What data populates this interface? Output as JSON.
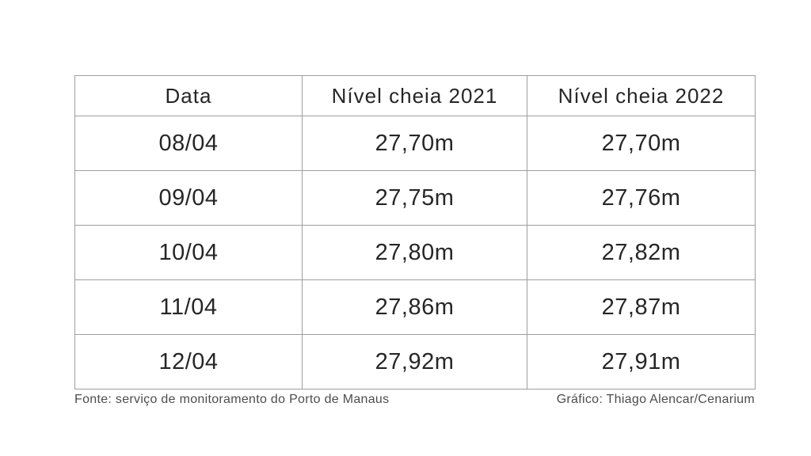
{
  "table": {
    "header": [
      "Data",
      "Nível cheia 2021",
      "Nível cheia 2022"
    ],
    "rows": [
      [
        "08/04",
        "27,70m",
        "27,70m"
      ],
      [
        "09/04",
        "27,75m",
        "27,76m"
      ],
      [
        "10/04",
        "27,80m",
        "27,82m"
      ],
      [
        "11/04",
        "27,86m",
        "27,87m"
      ],
      [
        "12/04",
        "27,92m",
        "27,91m"
      ]
    ],
    "border_color": "#9e9e9e",
    "text_color": "#262626"
  },
  "footer": {
    "source": "Fonte: serviço de monitoramento do Porto de Manaus",
    "credit": "Gráfico: Thiago Alencar/Cenarium",
    "color": "#4d4d4d"
  },
  "chart_data": {
    "type": "table",
    "title": "",
    "columns": [
      "Data",
      "Nível cheia 2021",
      "Nível cheia 2022"
    ],
    "categories": [
      "08/04",
      "09/04",
      "10/04",
      "11/04",
      "12/04"
    ],
    "series": [
      {
        "name": "Nível cheia 2021",
        "values": [
          27.7,
          27.75,
          27.8,
          27.86,
          27.92
        ]
      },
      {
        "name": "Nível cheia 2022",
        "values": [
          27.7,
          27.76,
          27.82,
          27.87,
          27.91
        ]
      }
    ],
    "unit": "m",
    "source": "Fonte: serviço de monitoramento do Porto de Manaus",
    "credit": "Gráfico: Thiago Alencar/Cenarium"
  }
}
